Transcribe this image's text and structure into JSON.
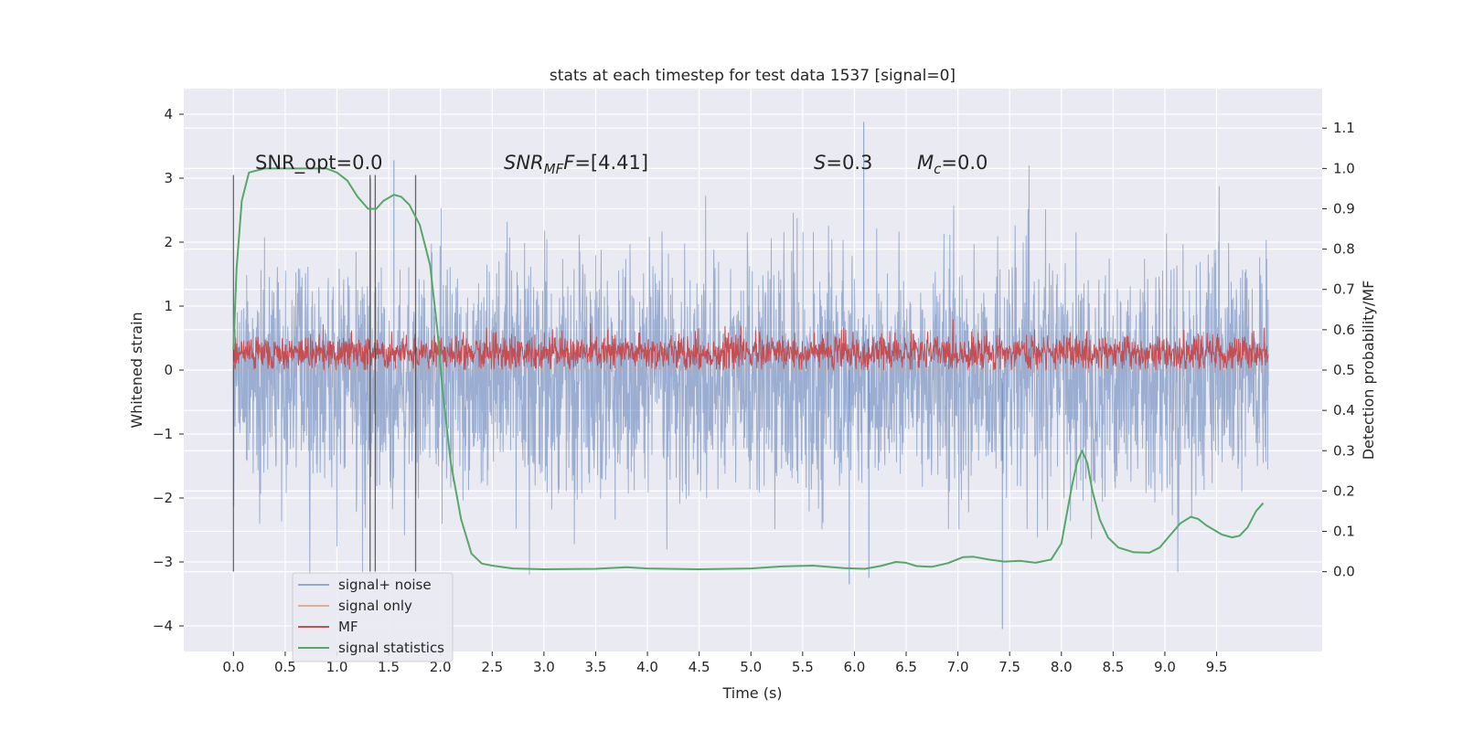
{
  "chart_data": {
    "type": "line",
    "title": "stats at each timestep for test data 1537 [signal=0]",
    "xlabel": "Time (s)",
    "ylabel": "Whitened strain",
    "y2label": "Detection probability/MF",
    "xlim": [
      -0.48,
      10.52
    ],
    "ylim": [
      -4.4,
      4.4
    ],
    "y2lim": [
      -0.198,
      1.198
    ],
    "xticks": [
      "0.0",
      "0.5",
      "1.0",
      "1.5",
      "2.0",
      "2.5",
      "3.0",
      "3.5",
      "4.0",
      "4.5",
      "5.0",
      "5.5",
      "6.0",
      "6.5",
      "7.0",
      "7.5",
      "8.0",
      "8.5",
      "9.0",
      "9.5"
    ],
    "yticks": [
      "4",
      "3",
      "2",
      "1",
      "0",
      "−1",
      "−2",
      "−3",
      "−4"
    ],
    "y2ticks": [
      "1.1",
      "1.0",
      "0.9",
      "0.8",
      "0.7",
      "0.6",
      "0.5",
      "0.4",
      "0.3",
      "0.2",
      "0.1",
      "0.0"
    ],
    "grid": true,
    "legend_position": "lower-left",
    "annotations": {
      "snr_opt": "SNR_opt=0.0",
      "snr_mf_prefix": "SNR",
      "snr_mf_sub": "MF",
      "snr_mf_value": "=[4.41]",
      "s_label": "S",
      "s_value": "=0.3",
      "mc_label": "M",
      "mc_sub": "c",
      "mc_value": "=0.0"
    },
    "vertical_lines_x": [
      0.0,
      1.32,
      1.37,
      1.76
    ],
    "series": [
      {
        "name": "signal+ noise",
        "color": "#4c72b0",
        "axis": "left",
        "description_values": "dense noise, x from 0 to 10 s, approx. range -3.5 to 3.9",
        "x_range": [
          0.0,
          10.0
        ],
        "spikes": [
          [
            1.55,
            3.28
          ],
          [
            6.09,
            3.88
          ],
          [
            7.43,
            -4.05
          ],
          [
            5.95,
            -3.35
          ],
          [
            6.14,
            -3.25
          ]
        ]
      },
      {
        "name": "signal only",
        "color": "#dd8452",
        "axis": "left",
        "values_constant": 0.0
      },
      {
        "name": "MF",
        "color": "#c44e52",
        "axis": "left",
        "x_range": [
          0.0,
          10.0
        ],
        "band": [
          0.0,
          0.6
        ]
      },
      {
        "name": "signal statistics",
        "color": "#55a868",
        "axis": "right",
        "points": [
          [
            0.0,
            0.55
          ],
          [
            0.03,
            0.75
          ],
          [
            0.08,
            0.92
          ],
          [
            0.15,
            0.99
          ],
          [
            0.3,
            1.0
          ],
          [
            0.5,
            1.0
          ],
          [
            0.7,
            1.0
          ],
          [
            0.9,
            1.0
          ],
          [
            1.0,
            0.99
          ],
          [
            1.1,
            0.97
          ],
          [
            1.2,
            0.93
          ],
          [
            1.3,
            0.9
          ],
          [
            1.38,
            0.9
          ],
          [
            1.45,
            0.92
          ],
          [
            1.55,
            0.935
          ],
          [
            1.62,
            0.93
          ],
          [
            1.7,
            0.91
          ],
          [
            1.8,
            0.86
          ],
          [
            1.9,
            0.76
          ],
          [
            1.97,
            0.6
          ],
          [
            2.02,
            0.45
          ],
          [
            2.1,
            0.27
          ],
          [
            2.2,
            0.13
          ],
          [
            2.3,
            0.045
          ],
          [
            2.4,
            0.02
          ],
          [
            2.5,
            0.015
          ],
          [
            2.7,
            0.008
          ],
          [
            3.0,
            0.006
          ],
          [
            3.5,
            0.007
          ],
          [
            3.8,
            0.011
          ],
          [
            4.0,
            0.008
          ],
          [
            4.5,
            0.006
          ],
          [
            5.0,
            0.008
          ],
          [
            5.3,
            0.013
          ],
          [
            5.6,
            0.015
          ],
          [
            5.9,
            0.009
          ],
          [
            6.1,
            0.007
          ],
          [
            6.25,
            0.014
          ],
          [
            6.4,
            0.024
          ],
          [
            6.5,
            0.022
          ],
          [
            6.6,
            0.014
          ],
          [
            6.75,
            0.012
          ],
          [
            6.9,
            0.021
          ],
          [
            7.05,
            0.036
          ],
          [
            7.15,
            0.037
          ],
          [
            7.3,
            0.03
          ],
          [
            7.45,
            0.025
          ],
          [
            7.6,
            0.027
          ],
          [
            7.75,
            0.022
          ],
          [
            7.9,
            0.03
          ],
          [
            8.0,
            0.07
          ],
          [
            8.05,
            0.14
          ],
          [
            8.1,
            0.21
          ],
          [
            8.15,
            0.27
          ],
          [
            8.2,
            0.3
          ],
          [
            8.25,
            0.27
          ],
          [
            8.3,
            0.2
          ],
          [
            8.37,
            0.13
          ],
          [
            8.45,
            0.085
          ],
          [
            8.55,
            0.06
          ],
          [
            8.7,
            0.048
          ],
          [
            8.85,
            0.047
          ],
          [
            8.95,
            0.06
          ],
          [
            9.05,
            0.09
          ],
          [
            9.15,
            0.12
          ],
          [
            9.25,
            0.136
          ],
          [
            9.32,
            0.131
          ],
          [
            9.4,
            0.115
          ],
          [
            9.55,
            0.092
          ],
          [
            9.65,
            0.085
          ],
          [
            9.72,
            0.089
          ],
          [
            9.8,
            0.11
          ],
          [
            9.88,
            0.15
          ],
          [
            9.95,
            0.17
          ]
        ]
      }
    ]
  }
}
